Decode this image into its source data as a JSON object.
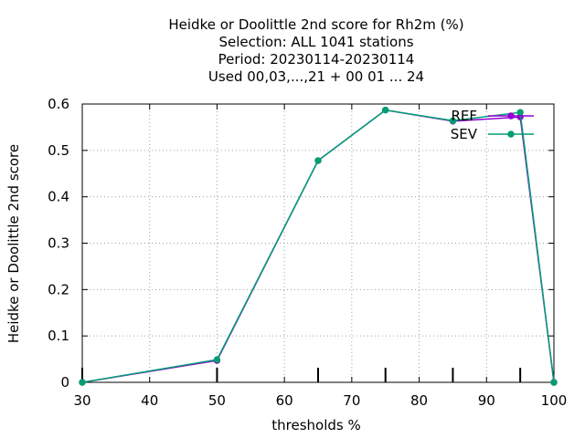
{
  "chart_data": {
    "type": "line",
    "title_lines": [
      "Heidke or Doolittle 2nd score  for Rh2m (%)",
      "Selection: ALL   1041 stations",
      "Period: 20230114-20230114",
      "Used  00,03,...,21  + 00 01 ... 24"
    ],
    "xlabel": "thresholds %",
    "ylabel": "Heidke or Doolittle 2nd score",
    "xlim": [
      30,
      100
    ],
    "ylim": [
      0,
      0.6
    ],
    "x_ticks": [
      30,
      40,
      50,
      60,
      70,
      80,
      90,
      100
    ],
    "y_ticks": [
      0,
      0.1,
      0.2,
      0.3,
      0.4,
      0.5,
      0.6
    ],
    "y_tick_labels": [
      "0",
      "0.1",
      "0.2",
      "0.3",
      "0.4",
      "0.5",
      "0.6"
    ],
    "grid": true,
    "legend_position": "top-right",
    "x": [
      30,
      50,
      65,
      75,
      85,
      95,
      100
    ],
    "series": [
      {
        "name": "REF",
        "color": "#9400d3",
        "values": [
          0.0,
          0.047,
          0.478,
          0.587,
          0.563,
          0.572,
          0.0
        ]
      },
      {
        "name": "SEV",
        "color": "#009e73",
        "values": [
          0.0,
          0.049,
          0.478,
          0.587,
          0.564,
          0.582,
          0.0
        ]
      }
    ],
    "threshold_markers": [
      30,
      50,
      65,
      75,
      85,
      95
    ]
  }
}
